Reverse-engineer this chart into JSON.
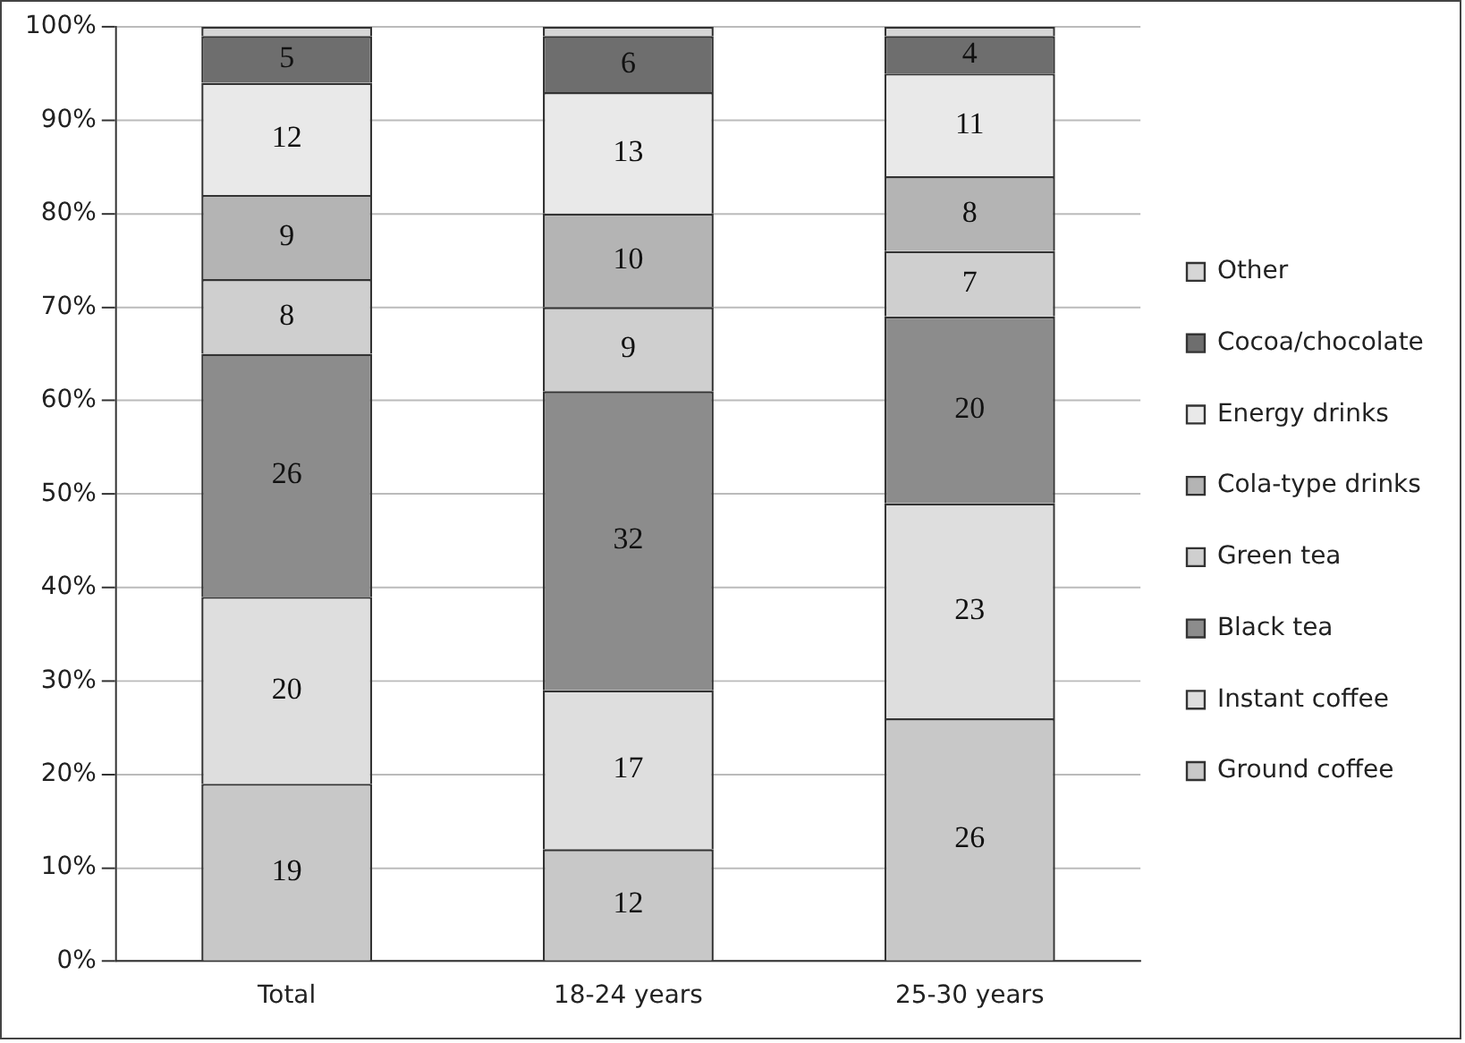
{
  "chart_data": {
    "type": "bar",
    "stacked": true,
    "categories": [
      "Total",
      "18-24 years",
      "25-30 years"
    ],
    "series": [
      {
        "name": "Ground coffee",
        "color": "#c8c8c8",
        "values": [
          19,
          12,
          26
        ],
        "value_labels": [
          "19",
          "12",
          "26"
        ]
      },
      {
        "name": "Instant coffee",
        "color": "#dedede",
        "values": [
          20,
          17,
          23
        ],
        "value_labels": [
          "20",
          "17",
          "23"
        ]
      },
      {
        "name": "Black tea",
        "color": "#8c8c8c",
        "values": [
          26,
          32,
          20
        ],
        "value_labels": [
          "26",
          "32",
          "20"
        ]
      },
      {
        "name": "Green tea",
        "color": "#cfcfcf",
        "values": [
          8,
          9,
          7
        ],
        "value_labels": [
          "8",
          "9",
          "7"
        ]
      },
      {
        "name": "Cola-type drinks",
        "color": "#b4b4b4",
        "values": [
          9,
          10,
          8
        ],
        "value_labels": [
          "9",
          "10",
          "8"
        ]
      },
      {
        "name": "Energy drinks",
        "color": "#e9e9e9",
        "values": [
          12,
          13,
          11
        ],
        "value_labels": [
          "12",
          "13",
          "11"
        ]
      },
      {
        "name": "Cocoa/chocolate",
        "color": "#6e6e6e",
        "values": [
          5,
          6,
          4
        ],
        "value_labels": [
          "5",
          "6",
          "4"
        ]
      },
      {
        "name": "Other",
        "color": "#d6d6d6",
        "values": [
          1,
          1,
          1
        ],
        "value_labels": [
          null,
          null,
          null
        ]
      }
    ],
    "ylim": [
      0,
      100
    ],
    "yticks": [
      {
        "value": 0,
        "label": "0%"
      },
      {
        "value": 10,
        "label": "10%"
      },
      {
        "value": 20,
        "label": "20%"
      },
      {
        "value": 30,
        "label": "30%"
      },
      {
        "value": 40,
        "label": "40%"
      },
      {
        "value": 50,
        "label": "50%"
      },
      {
        "value": 60,
        "label": "60%"
      },
      {
        "value": 70,
        "label": "70%"
      },
      {
        "value": 80,
        "label": "80%"
      },
      {
        "value": 90,
        "label": "90%"
      },
      {
        "value": 100,
        "label": "100%"
      }
    ],
    "grid": "y",
    "legend": "right"
  }
}
